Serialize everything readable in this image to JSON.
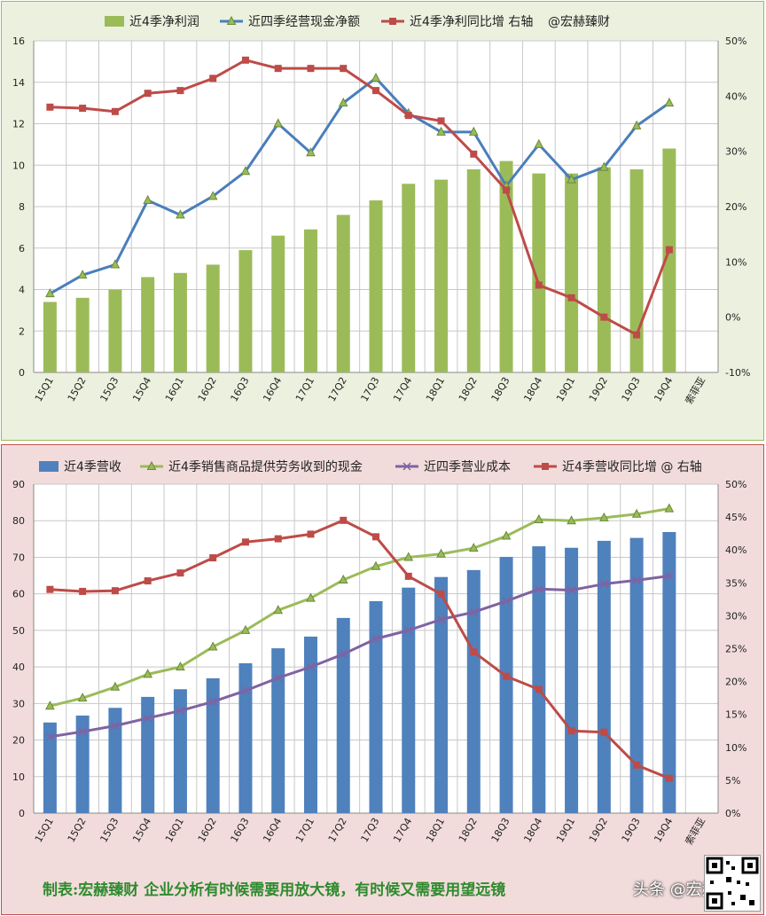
{
  "charts": [
    {
      "legend": [
        "近4季净利润",
        "近四季经营现金净额",
        "近4季净利同比增 右轴",
        "@宏赫臻财"
      ]
    },
    {
      "legend": [
        "近4季营收",
        "近4季销售商品提供劳务收到的现金",
        "近四季营业成本",
        "近4季营收同比增 @ 右轴"
      ]
    }
  ],
  "footer": {
    "text": "制表:宏赫臻财    企业分析有时候需要用放大镜，有时候又需要用望远镜",
    "watermark": "头条 @宏赫臻财"
  },
  "colors": {
    "green_bar": "#9bbb59",
    "blue_bar": "#4f81bd",
    "blue_line": "#4a7ebb",
    "red_line": "#be4b48",
    "light_green_line": "#9bbb59",
    "purple_line": "#7f63a2"
  },
  "chart_data": [
    {
      "type": "bar",
      "categories": [
        "15Q1",
        "15Q2",
        "15Q3",
        "15Q4",
        "16Q1",
        "16Q2",
        "16Q3",
        "16Q4",
        "17Q1",
        "17Q2",
        "17Q3",
        "17Q4",
        "18Q1",
        "18Q2",
        "18Q3",
        "18Q4",
        "19Q1",
        "19Q2",
        "19Q3",
        "19Q4",
        "索菲亚"
      ],
      "series": [
        {
          "name": "近4季净利润",
          "type": "bar",
          "axis": "left",
          "values": [
            3.4,
            3.6,
            4.0,
            4.6,
            4.8,
            5.2,
            5.9,
            6.6,
            6.9,
            7.6,
            8.3,
            9.1,
            9.3,
            9.8,
            10.2,
            9.6,
            9.6,
            9.9,
            9.8,
            10.8,
            null
          ]
        },
        {
          "name": "近四季经营现金净额",
          "type": "line",
          "axis": "left",
          "values": [
            3.8,
            4.7,
            5.2,
            8.3,
            7.6,
            8.5,
            9.7,
            12.0,
            10.6,
            13.0,
            14.2,
            12.5,
            11.6,
            11.6,
            9.0,
            11.0,
            9.3,
            9.9,
            11.9,
            13.0,
            null
          ]
        },
        {
          "name": "近4季净利同比增 右轴",
          "type": "line",
          "axis": "right",
          "values": [
            38.0,
            37.8,
            37.2,
            40.5,
            41.0,
            43.2,
            46.5,
            45.0,
            45.0,
            45.0,
            41.0,
            36.5,
            35.5,
            29.5,
            23.0,
            5.8,
            3.5,
            0.0,
            -3.2,
            12.2,
            null
          ]
        }
      ],
      "ylim": [
        0,
        16
      ],
      "yticks": [
        0,
        2,
        4,
        6,
        8,
        10,
        12,
        14,
        16
      ],
      "y2lim": [
        -10,
        50
      ],
      "y2ticks": [
        "-10%",
        "0%",
        "10%",
        "20%",
        "30%",
        "40%",
        "50%"
      ],
      "y2values": [
        -10,
        0,
        10,
        20,
        30,
        40,
        50
      ]
    },
    {
      "type": "bar",
      "categories": [
        "15Q1",
        "15Q2",
        "15Q3",
        "15Q4",
        "16Q1",
        "16Q2",
        "16Q3",
        "16Q4",
        "17Q1",
        "17Q2",
        "17Q3",
        "17Q4",
        "18Q1",
        "18Q2",
        "18Q3",
        "18Q4",
        "19Q1",
        "19Q2",
        "19Q3",
        "19Q4",
        "索菲亚"
      ],
      "series": [
        {
          "name": "近4季营收",
          "type": "bar",
          "axis": "left",
          "values": [
            24.8,
            26.7,
            28.8,
            31.8,
            33.9,
            36.9,
            41.0,
            45.1,
            48.3,
            53.4,
            58.0,
            61.7,
            64.6,
            66.5,
            70.1,
            73.0,
            72.6,
            74.5,
            75.3,
            76.9,
            null
          ]
        },
        {
          "name": "近4季销售商品提供劳务收到的现金",
          "type": "line",
          "axis": "left",
          "values": [
            29.3,
            31.5,
            34.5,
            38.0,
            40.0,
            45.5,
            50.0,
            55.5,
            58.8,
            63.8,
            67.5,
            70.0,
            70.9,
            72.5,
            75.8,
            80.3,
            80.0,
            80.8,
            81.8,
            83.3,
            null
          ]
        },
        {
          "name": "近四季营业成本",
          "type": "line",
          "axis": "left",
          "values": [
            20.9,
            22.3,
            23.9,
            26.0,
            28.0,
            30.5,
            33.5,
            37.0,
            40.0,
            43.5,
            47.7,
            50.0,
            53.0,
            55.0,
            58.0,
            61.3,
            61.0,
            62.7,
            63.7,
            64.9,
            null
          ]
        },
        {
          "name": "近4季营收同比增 @ 右轴",
          "type": "line",
          "axis": "right",
          "values": [
            34.0,
            33.7,
            33.8,
            35.3,
            36.5,
            38.8,
            41.2,
            41.7,
            42.4,
            44.5,
            42.0,
            36.0,
            33.3,
            24.5,
            20.8,
            18.8,
            12.5,
            12.3,
            7.3,
            5.3,
            null
          ]
        }
      ],
      "ylim": [
        0,
        90
      ],
      "yticks": [
        0,
        10,
        20,
        30,
        40,
        50,
        60,
        70,
        80,
        90
      ],
      "y2lim": [
        0,
        50
      ],
      "y2ticks": [
        "0%",
        "5%",
        "10%",
        "15%",
        "20%",
        "25%",
        "30%",
        "35%",
        "40%",
        "45%",
        "50%"
      ],
      "y2values": [
        0,
        5,
        10,
        15,
        20,
        25,
        30,
        35,
        40,
        45,
        50
      ]
    }
  ]
}
